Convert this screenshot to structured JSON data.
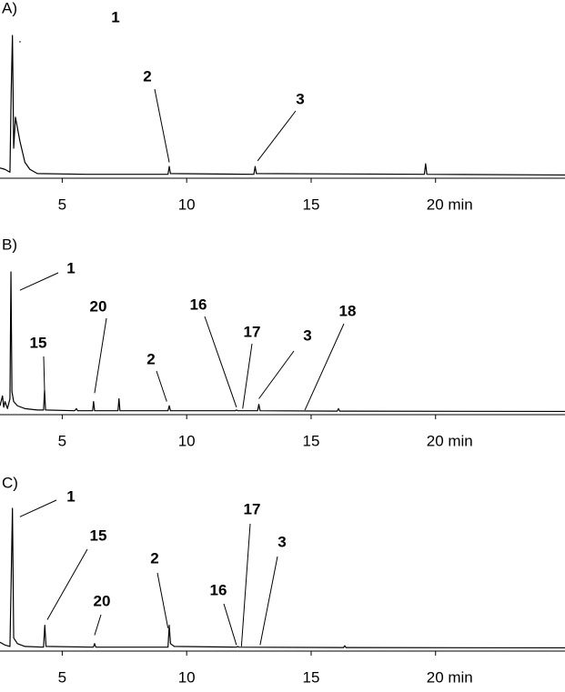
{
  "chart_data": [
    {
      "type": "line",
      "label": "A)",
      "color": "#000000",
      "xlim": [
        2.5,
        25.2
      ],
      "xticks": [
        5,
        10,
        15,
        {
          "value": 20,
          "label": "20 min"
        }
      ],
      "x": [
        2.5,
        2.7,
        2.9,
        2.95,
        3.0,
        3.05,
        3.12,
        3.3,
        3.5,
        3.7,
        4,
        6,
        9.25,
        9.3,
        9.35,
        12.7,
        12.75,
        12.8,
        19.55,
        19.6,
        19.65,
        25.2
      ],
      "values": [
        6,
        5,
        3,
        60,
        100,
        20,
        42,
        25,
        10,
        5,
        2,
        1.5,
        1.5,
        7,
        2,
        1.5,
        7,
        2,
        1.5,
        9,
        1.5,
        1
      ],
      "annotations": [
        {
          "text": "1",
          "x": 3.3,
          "y": 95
        },
        {
          "text": "2",
          "x": 9.3,
          "y": 10
        },
        {
          "text": "3",
          "x": 12.85,
          "y": 11
        }
      ]
    },
    {
      "type": "line",
      "label": "B)",
      "color": "#000000",
      "xlim": [
        2.5,
        25.2
      ],
      "xticks": [
        5,
        10,
        15,
        {
          "value": 20,
          "label": "20 min"
        }
      ],
      "x": [
        2.5,
        2.6,
        2.65,
        2.7,
        2.8,
        2.9,
        2.94,
        2.98,
        3.05,
        3.2,
        3.5,
        4,
        4.25,
        4.29,
        4.33,
        5.5,
        5.57,
        5.62,
        6.22,
        6.26,
        6.3,
        7.24,
        7.28,
        7.32,
        9.25,
        9.3,
        9.35,
        11.95,
        12.0,
        12.05,
        12.85,
        12.9,
        12.95,
        16.05,
        16.1,
        16.15,
        25.2
      ],
      "values": [
        5,
        12,
        4,
        8,
        3,
        10,
        100,
        15,
        8,
        5,
        3,
        2,
        2,
        16,
        2,
        1.5,
        3,
        1.5,
        1.5,
        8,
        1.5,
        1.5,
        10,
        1.5,
        1.5,
        5,
        1.5,
        1.5,
        2,
        1.5,
        1.5,
        6,
        1.5,
        1.2,
        3,
        1.2,
        1
      ],
      "annotations": [
        {
          "text": "1",
          "x": 3.3,
          "y": 87
        },
        {
          "text": "15",
          "x": 4.29,
          "y": 16
        },
        {
          "text": "20",
          "x": 6.3,
          "y": 14
        },
        {
          "text": "2",
          "x": 9.2,
          "y": 8
        },
        {
          "text": "16",
          "x": 12.0,
          "y": 4
        },
        {
          "text": "17",
          "x": 12.25,
          "y": 3
        },
        {
          "text": "3",
          "x": 12.9,
          "y": 10
        },
        {
          "text": "18",
          "x": 14.75,
          "y": 2
        }
      ]
    },
    {
      "type": "line",
      "label": "C)",
      "color": "#000000",
      "xlim": [
        2.5,
        25.2
      ],
      "xticks": [
        5,
        10,
        15,
        {
          "value": 20,
          "label": "20 min"
        }
      ],
      "x": [
        2.5,
        2.7,
        2.9,
        2.95,
        3.0,
        3.05,
        3.2,
        3.5,
        4.25,
        4.3,
        4.35,
        6.25,
        6.3,
        6.35,
        9.25,
        9.3,
        9.35,
        9.5,
        12.0,
        12.05,
        12.1,
        16.3,
        16.35,
        16.4,
        25.2
      ],
      "values": [
        5,
        3,
        2,
        50,
        100,
        8,
        4,
        2,
        1.5,
        17,
        2,
        1.5,
        4,
        1.5,
        1.5,
        17,
        4,
        2,
        1.5,
        2,
        1.5,
        1.2,
        2.5,
        1.2,
        1
      ],
      "annotations": [
        {
          "text": "1",
          "x": 3.3,
          "y": 94
        },
        {
          "text": "15",
          "x": 4.4,
          "y": 21
        },
        {
          "text": "20",
          "x": 6.3,
          "y": 10
        },
        {
          "text": "2",
          "x": 9.25,
          "y": 15
        },
        {
          "text": "16",
          "x": 12.0,
          "y": 3
        },
        {
          "text": "17",
          "x": 12.2,
          "y": 2
        },
        {
          "text": "3",
          "x": 12.95,
          "y": 3
        }
      ]
    }
  ]
}
